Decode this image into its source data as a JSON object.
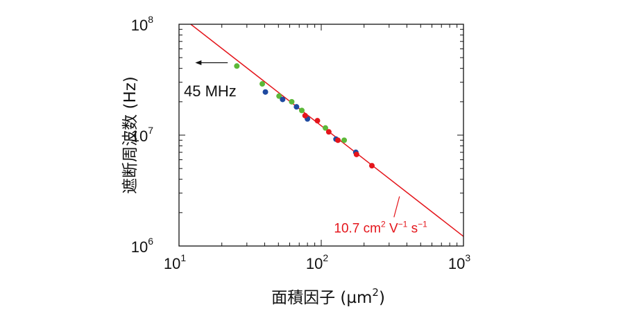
{
  "chart_data": {
    "type": "scatter",
    "title": "",
    "xlabel": "面積因子 (µm²)",
    "xlabel_parts": {
      "main": "面積因子 (µm",
      "sup": "2",
      "close": ")"
    },
    "ylabel": "遮断周波数 (Hz)",
    "xscale": "log",
    "yscale": "log",
    "xlim": [
      10,
      1000
    ],
    "ylim": [
      1000000,
      100000000
    ],
    "x_ticks": [
      {
        "value": 10,
        "base": "10",
        "exp": "1"
      },
      {
        "value": 100,
        "base": "10",
        "exp": "2"
      },
      {
        "value": 1000,
        "base": "10",
        "exp": "3"
      }
    ],
    "y_ticks": [
      {
        "value": 1000000,
        "base": "10",
        "exp": "6"
      },
      {
        "value": 10000000,
        "base": "10",
        "exp": "7"
      },
      {
        "value": 100000000,
        "base": "10",
        "exp": "8"
      }
    ],
    "grid": false,
    "series": [
      {
        "color": "#5cb838",
        "x": [
          25.5,
          38.5,
          50.5,
          62,
          73,
          107,
          145
        ],
        "y": [
          42000000,
          29000000,
          22500000,
          20000000,
          16700000,
          11600000,
          9000000
        ]
      },
      {
        "color": "#1f4aa0",
        "x": [
          40.5,
          53.5,
          67,
          80,
          127,
          175
        ],
        "y": [
          24500000,
          21000000,
          18000000,
          14000000,
          9200000,
          7000000
        ]
      },
      {
        "color": "#e4151b",
        "x": [
          77,
          94,
          113,
          131,
          177,
          227
        ],
        "y": [
          15000000,
          13500000,
          10700000,
          9000000,
          6700000,
          5300000
        ]
      }
    ],
    "fit_line": {
      "color": "#e4151b",
      "points": [
        [
          12.1,
          100000000
        ],
        [
          1000,
          1220000
        ]
      ],
      "label": "10.7 cm² V⁻¹ s⁻¹",
      "label_parts": {
        "a": "10.7 cm",
        "sup1": "2",
        "b": " V",
        "sup2": "−1",
        "c": " s",
        "sup3": "−1"
      },
      "label_anchor": [
        355,
        2800000
      ]
    },
    "annotation": {
      "text": "45 MHz",
      "arrow_from": [
        22,
        45000000
      ],
      "arrow_to": [
        13,
        45000000
      ]
    }
  }
}
